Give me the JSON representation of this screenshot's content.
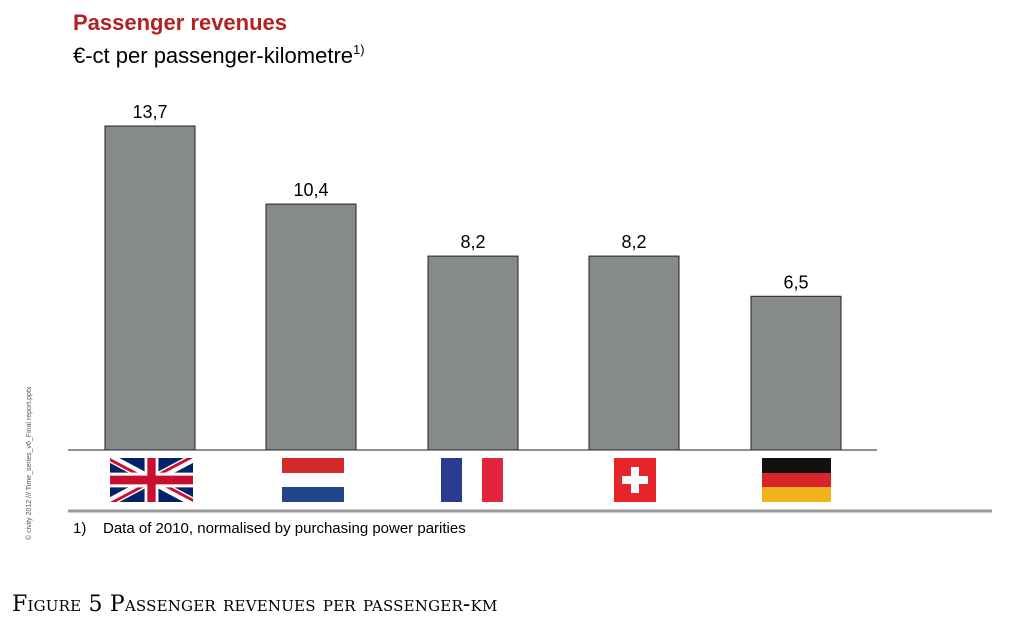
{
  "chart_data": {
    "type": "bar",
    "title": "Passenger revenues",
    "subtitle": "€-ct per passenger-kilometre",
    "subtitle_footnote_mark": "1)",
    "categories": [
      "United Kingdom",
      "Netherlands",
      "France",
      "Switzerland",
      "Germany"
    ],
    "values": [
      13.7,
      10.4,
      8.2,
      8.2,
      6.5
    ],
    "value_labels": [
      "13,7",
      "10,4",
      "8,2",
      "8,2",
      "6,5"
    ],
    "ylim": [
      0,
      14.8
    ],
    "xlabel": "",
    "ylabel": "",
    "grid": false
  },
  "colors": {
    "title": "#b22222",
    "bar_fill": "#878a8a",
    "bar_stroke": "#222222",
    "footnote_line": "#9a9a9a"
  },
  "side_text": "© civity 2012 /// Time_series_v6_Final report.pptx",
  "footnote": {
    "number": "1)",
    "text": "Data of 2010, normalised by purchasing power parities"
  },
  "caption": "Figure 5 Passenger revenues per passenger-km"
}
